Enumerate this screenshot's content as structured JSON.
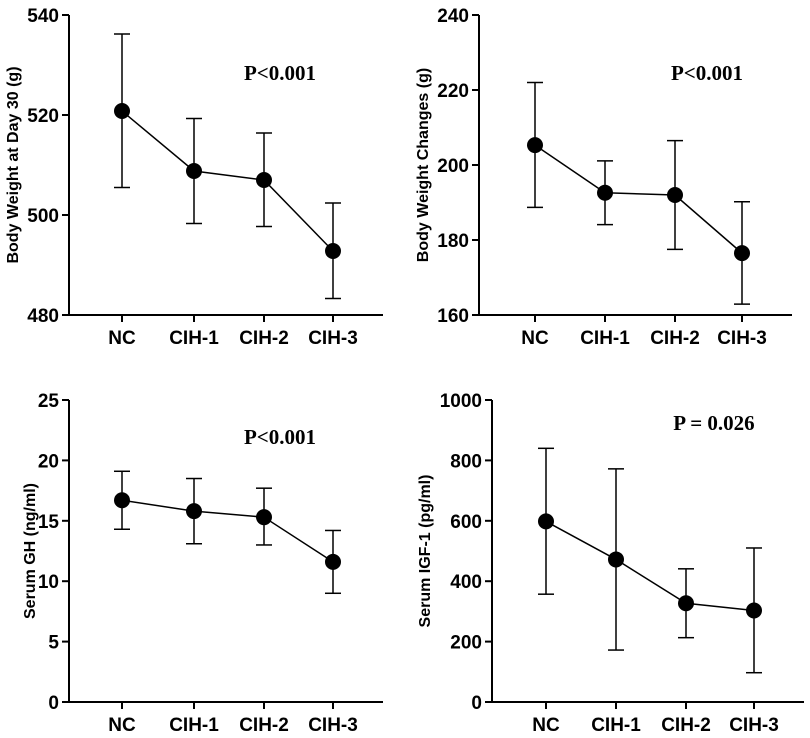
{
  "chart_data": [
    {
      "type": "line",
      "ylabel": "Body Weight at Day 30 (g)",
      "annotation": "P<0.001",
      "categories": [
        "NC",
        "CIH-1",
        "CIH-2",
        "CIH-3"
      ],
      "ylim": [
        480,
        540
      ],
      "yticks": [
        480,
        500,
        520,
        540
      ],
      "yticklabels": [
        "480",
        "500",
        "520",
        "540"
      ],
      "values": [
        520.8,
        508.8,
        507.0,
        492.8
      ],
      "err_low": [
        505.5,
        498.3,
        497.7,
        483.3
      ],
      "err_high": [
        536.2,
        519.3,
        516.4,
        502.4
      ]
    },
    {
      "type": "line",
      "ylabel": "Body Weight Changes (g)",
      "annotation": "P<0.001",
      "categories": [
        "NC",
        "CIH-1",
        "CIH-2",
        "CIH-3"
      ],
      "ylim": [
        160,
        240
      ],
      "yticks": [
        160,
        180,
        200,
        220,
        240
      ],
      "yticklabels": [
        "160",
        "180",
        "200",
        "220",
        "240"
      ],
      "values": [
        205.3,
        192.6,
        192.0,
        176.5
      ],
      "err_low": [
        188.7,
        184.1,
        177.5,
        162.9
      ],
      "err_high": [
        222.0,
        201.1,
        206.5,
        190.2
      ]
    },
    {
      "type": "line",
      "ylabel": "Serum GH (ng/ml)",
      "annotation": "P<0.001",
      "categories": [
        "NC",
        "CIH-1",
        "CIH-2",
        "CIH-3"
      ],
      "ylim": [
        0,
        25
      ],
      "yticks": [
        0,
        5,
        10,
        15,
        20,
        25
      ],
      "yticklabels": [
        "0",
        "5",
        "10",
        "15",
        "20",
        "25"
      ],
      "values": [
        16.7,
        15.8,
        15.3,
        11.6
      ],
      "err_low": [
        14.3,
        13.1,
        13.0,
        9.0
      ],
      "err_high": [
        19.1,
        18.5,
        17.7,
        14.2
      ]
    },
    {
      "type": "line",
      "ylabel": "Serum IGF-1 (pg/ml)",
      "annotation": "P = 0.026",
      "categories": [
        "NC",
        "CIH-1",
        "CIH-2",
        "CIH-3"
      ],
      "ylim": [
        0,
        1000
      ],
      "yticks": [
        0,
        200,
        400,
        600,
        800,
        1000
      ],
      "yticklabels": [
        "0",
        "200",
        "400",
        "600",
        "800",
        "1000"
      ],
      "values": [
        598,
        472,
        327,
        303
      ],
      "err_low": [
        357,
        172,
        213,
        97
      ],
      "err_high": [
        840,
        772,
        441,
        510
      ]
    }
  ]
}
